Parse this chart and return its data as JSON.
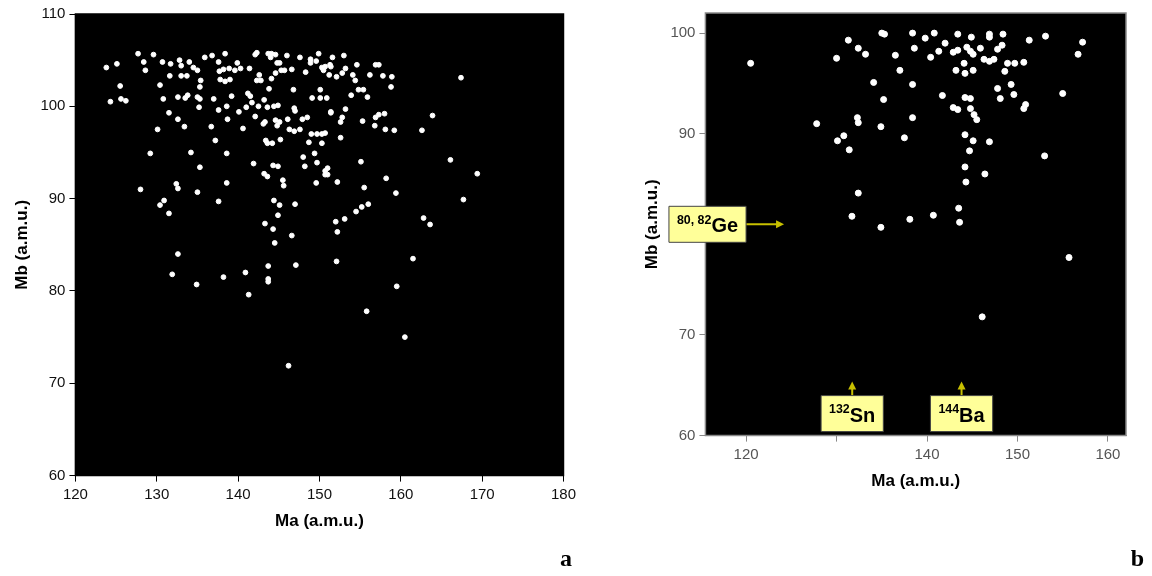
{
  "chart_data": [
    {
      "type": "scatter",
      "xlabel": "Ma (a.m.u.)",
      "ylabel": "Mb (a.m.u.)",
      "xlim": [
        120,
        180
      ],
      "ylim": [
        60,
        110
      ],
      "xticks": [
        120,
        130,
        140,
        150,
        160,
        170,
        180
      ],
      "yticks": [
        60,
        70,
        80,
        90,
        100,
        110
      ],
      "grid": false,
      "marker": "circle",
      "annotations": [
        "a"
      ],
      "series": [
        {
          "color": "#ffffff",
          "x": [
            123.8,
            125.1,
            125.5,
            124.3,
            125.6,
            126.2,
            127.7,
            129.6,
            128.4,
            128.6,
            130.7,
            131.7,
            132.8,
            134.0,
            130.4,
            130.8,
            130.1,
            129.2,
            128.0,
            130.4,
            130.9,
            131.5,
            132.6,
            131.9,
            134.9,
            131.6,
            133.0,
            133.7,
            133.0,
            134.5,
            135.0,
            135.4,
            135.3,
            132.6,
            133.5,
            133.8,
            135.0,
            135.3,
            135.2,
            131.5,
            132.6,
            133.4,
            134.2,
            135.3,
            132.4,
            132.6,
            135.0,
            135.9,
            136.8,
            137.6,
            138.4,
            137.7,
            138.2,
            137.8,
            138.4,
            139.0,
            138.9,
            139.6,
            137.0,
            137.6,
            138.6,
            139.2,
            138.7,
            136.7,
            137.2,
            138.6,
            138.6,
            137.6,
            138.2,
            139.9,
            140.3,
            141.4,
            142.1,
            142.3,
            142.6,
            142.3,
            142.8,
            140.1,
            140.6,
            141.0,
            141.7,
            141.2,
            141.5,
            141.9,
            140.9,
            141.3,
            142.1,
            142.5,
            143.2,
            143.1,
            143.3,
            143.8,
            143.7,
            144.0,
            144.1,
            144.6,
            144.8,
            145.1,
            146.0,
            145.7,
            145.3,
            146.6,
            144.1,
            144.6,
            143.6,
            144.4,
            144.9,
            144.6,
            145.1,
            144.8,
            143.4,
            143.6,
            144.2,
            145.2,
            143.2,
            143.6,
            144.3,
            144.9,
            145.5,
            145.6,
            144.4,
            145.1,
            144.9,
            143.3,
            144.3,
            144.5,
            146.6,
            143.7,
            143.7,
            143.7,
            147.1,
            147.0,
            146.8,
            146.9,
            147.0,
            146.1,
            146.3,
            146.9,
            147.6,
            147.6,
            148.9,
            149.6,
            149.9,
            148.9,
            148.3,
            150.3,
            150.5,
            151.4,
            147.9,
            148.5,
            149.0,
            149.7,
            150.3,
            148.7,
            150.3,
            148.0,
            149.4,
            148.2,
            149.7,
            150.7,
            151.0,
            149.6,
            150.1,
            149.1,
            150.1,
            151.4,
            151.6,
            153.0,
            150.7,
            151.3,
            151.2,
            152.1,
            152.8,
            153.2,
            154.6,
            156.9,
            157.3,
            154.1,
            154.4,
            156.2,
            157.8,
            158.9,
            158.8,
            154.8,
            155.4,
            153.9,
            155.9,
            150.9,
            167.4,
            151.4,
            153.2,
            152.8,
            152.6,
            155.3,
            156.9,
            157.3,
            158.0,
            156.8,
            158.1,
            159.2,
            162.6,
            163.9,
            150.7,
            152.6,
            155.1,
            166.1,
            169.4,
            151.0,
            150.7,
            152.2,
            155.5,
            158.2,
            159.4,
            167.7,
            154.5,
            155.2,
            156.0,
            152.0,
            153.1,
            152.2,
            162.8,
            163.6,
            152.1,
            161.5,
            159.5,
            155.8,
            146.2,
            160.5
          ],
          "values": [
            104.2,
            104.6,
            102.2,
            100.5,
            100.8,
            100.6,
            105.7,
            105.6,
            104.8,
            103.9,
            104.8,
            104.6,
            105.0,
            104.8,
            102.3,
            100.8,
            97.5,
            94.9,
            91.0,
            89.3,
            89.8,
            88.4,
            84.0,
            81.8,
            80.7,
            103.3,
            103.3,
            103.3,
            104.4,
            104.2,
            103.9,
            102.8,
            102.1,
            101.0,
            100.9,
            101.2,
            101.0,
            100.8,
            99.9,
            99.3,
            98.6,
            97.8,
            95.0,
            93.4,
            91.6,
            91.1,
            90.7,
            105.3,
            105.5,
            104.8,
            105.7,
            103.8,
            104.0,
            102.9,
            102.7,
            102.9,
            104.1,
            103.9,
            100.8,
            99.6,
            100.0,
            101.1,
            98.6,
            97.8,
            96.3,
            94.9,
            91.7,
            89.7,
            81.5,
            104.7,
            104.1,
            104.1,
            105.6,
            105.8,
            103.4,
            102.8,
            102.8,
            99.4,
            97.6,
            99.9,
            100.4,
            101.4,
            101.1,
            93.8,
            82.0,
            79.6,
            98.9,
            100.0,
            100.7,
            98.1,
            98.3,
            101.9,
            105.7,
            105.3,
            105.7,
            105.6,
            104.7,
            104.7,
            105.5,
            103.9,
            103.9,
            104.0,
            103.0,
            103.6,
            99.9,
            100.0,
            100.1,
            98.5,
            98.3,
            97.9,
            96.3,
            96.0,
            96.0,
            96.4,
            92.7,
            92.4,
            93.6,
            93.5,
            92.0,
            91.4,
            89.8,
            89.3,
            88.2,
            87.3,
            86.7,
            85.2,
            86.0,
            82.7,
            81.3,
            81.0,
            82.8,
            89.4,
            101.8,
            99.8,
            99.5,
            98.6,
            97.5,
            97.3,
            97.5,
            105.3,
            105.1,
            104.9,
            105.7,
            104.7,
            103.7,
            104.2,
            103.9,
            104.3,
            98.6,
            98.8,
            97.0,
            97.0,
            97.0,
            96.1,
            96.0,
            94.5,
            94.9,
            93.5,
            93.9,
            93.0,
            92.6,
            91.7,
            100.9,
            100.9,
            101.8,
            99.4,
            105.3,
            105.5,
            104.3,
            104.5,
            103.4,
            103.2,
            103.6,
            104.1,
            104.5,
            104.5,
            104.5,
            103.4,
            102.8,
            103.4,
            103.3,
            103.2,
            102.1,
            101.8,
            101.8,
            101.2,
            101.0,
            100.9,
            103.1,
            99.3,
            99.7,
            98.8,
            98.3,
            98.4,
            98.8,
            99.1,
            99.2,
            97.9,
            97.5,
            97.4,
            97.4,
            99.0,
            97.1,
            96.6,
            94.0,
            94.2,
            92.7,
            93.3,
            92.6,
            91.8,
            91.2,
            92.2,
            90.6,
            89.9,
            88.6,
            89.1,
            89.4,
            87.5,
            87.8,
            86.4,
            87.9,
            87.2,
            83.2,
            83.5,
            80.5,
            77.8,
            71.9,
            75.0
          ]
        }
      ]
    },
    {
      "type": "scatter",
      "xlabel": "Ma (a.m.u.)",
      "ylabel": "Mb (a.m.u.)",
      "xlim": [
        115.5,
        162
      ],
      "ylim": [
        60,
        102
      ],
      "xticks": [
        120,
        {
          "value": 130,
          "label": null
        },
        140,
        150,
        160
      ],
      "yticks": [
        60,
        70,
        {
          "value": 80,
          "label": null
        },
        90,
        100
      ],
      "grid": false,
      "marker": "circle",
      "annotations": [
        "$^{80, 82}$Ge",
        "$^{132}$Sn",
        "$^{144}$Ba",
        "b"
      ],
      "series": [
        {
          "color": "#ffffff",
          "x": [
            120.5,
            127.8,
            130.0,
            131.3,
            132.4,
            133.2,
            135.0,
            135.3,
            134.1,
            135.2,
            132.3,
            132.4,
            130.1,
            130.8,
            131.4,
            134.9,
            132.4,
            131.7,
            134.9,
            138.4,
            139.8,
            140.8,
            143.4,
            144.9,
            146.9,
            146.9,
            148.4,
            151.3,
            153.1,
            157.2,
            156.7,
            136.5,
            138.6,
            140.4,
            141.3,
            142.0,
            142.9,
            143.4,
            144.4,
            144.8,
            145.1,
            145.9,
            146.3,
            146.9,
            147.4,
            147.8,
            148.3,
            148.9,
            149.7,
            150.7,
            148.6,
            137.0,
            143.2,
            144.2,
            145.1,
            144.1,
            138.4,
            141.7,
            144.2,
            144.8,
            147.8,
            148.1,
            149.3,
            149.6,
            150.7,
            150.9,
            142.9,
            143.4,
            144.8,
            145.2,
            145.5,
            155.0,
            138.4,
            137.5,
            144.2,
            145.1,
            146.9,
            144.7,
            153.0,
            144.2,
            146.4,
            144.3,
            143.5,
            143.6,
            140.7,
            138.1,
            155.7,
            146.1
          ],
          "values": [
            97.0,
            91.0,
            97.5,
            99.3,
            98.5,
            97.9,
            100.0,
            99.9,
            95.1,
            93.4,
            91.6,
            91.1,
            89.3,
            89.8,
            88.4,
            90.7,
            84.1,
            81.8,
            80.7,
            100.0,
            99.5,
            100.0,
            99.9,
            99.6,
            99.9,
            99.6,
            99.9,
            99.3,
            99.7,
            99.1,
            97.9,
            97.8,
            98.5,
            97.6,
            98.2,
            99.0,
            98.1,
            98.3,
            98.6,
            98.2,
            97.9,
            98.5,
            97.4,
            97.2,
            97.4,
            98.4,
            98.8,
            97.0,
            97.0,
            97.1,
            96.2,
            96.3,
            96.3,
            96.0,
            96.3,
            97.0,
            94.9,
            93.8,
            93.6,
            93.5,
            94.5,
            93.5,
            94.9,
            93.9,
            92.5,
            92.9,
            92.6,
            92.4,
            92.5,
            91.9,
            91.4,
            94.0,
            91.6,
            89.6,
            89.9,
            89.3,
            89.2,
            88.3,
            87.8,
            86.7,
            86.0,
            85.2,
            82.6,
            81.2,
            81.9,
            81.5,
            77.7,
            71.8
          ]
        }
      ]
    }
  ]
}
